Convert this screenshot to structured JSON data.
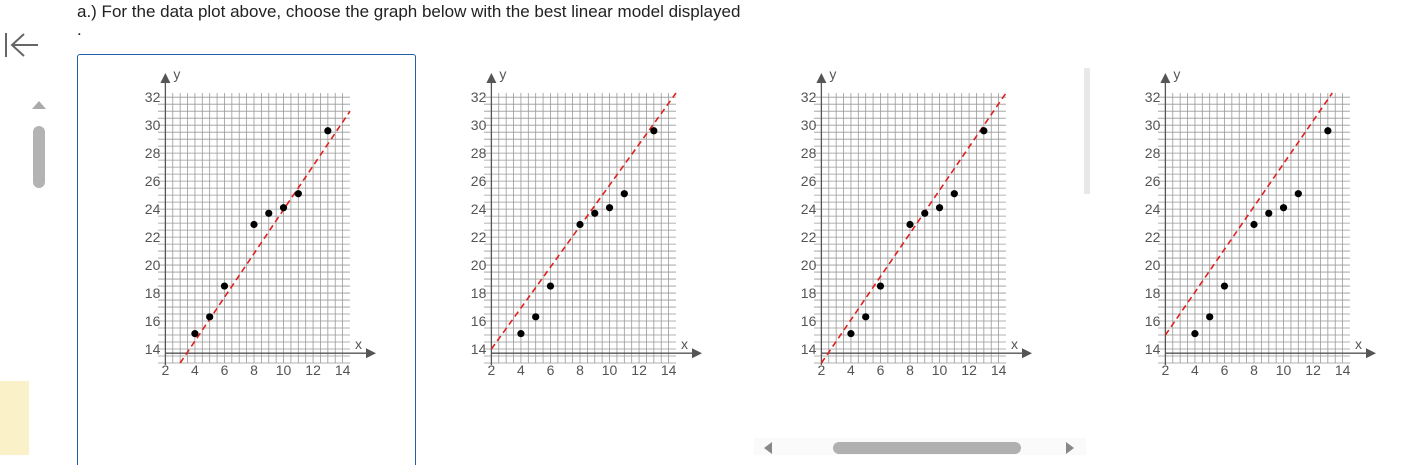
{
  "question": {
    "text": "a.) For the data plot above, choose the graph below with the best linear model displayed",
    "dot": "."
  },
  "graphs": [
    {
      "id": "a",
      "line": {
        "x1": 3,
        "y1": 13,
        "x2": 14.5,
        "y2": 31
      }
    },
    {
      "id": "b",
      "line": {
        "x1": 2,
        "y1": 14,
        "x2": 14.5,
        "y2": 32.3
      }
    },
    {
      "id": "c",
      "line": {
        "x1": 2,
        "y1": 13,
        "x2": 14.5,
        "y2": 32.3
      }
    },
    {
      "id": "d",
      "line": {
        "x1": 2,
        "y1": 15,
        "x2": 13.3,
        "y2": 32.3
      }
    }
  ],
  "points": [
    [
      4,
      15.1
    ],
    [
      5,
      16.3
    ],
    [
      6,
      18.5
    ],
    [
      8,
      22.9
    ],
    [
      9,
      23.7
    ],
    [
      10,
      24.1
    ],
    [
      11,
      25.1
    ],
    [
      13,
      29.6
    ]
  ],
  "axes": {
    "xlabel": "x",
    "ylabel": "y",
    "xticks": [
      "2",
      "4",
      "6",
      "8",
      "10",
      "12",
      "14"
    ],
    "yticks": [
      "14",
      "16",
      "18",
      "20",
      "22",
      "24",
      "26",
      "28",
      "30",
      "32"
    ]
  },
  "colors": {
    "line": "#e02020",
    "grid": "#999999",
    "axis": "#555555",
    "point": "#000000",
    "selected": "#1f5fa8"
  },
  "icons": {
    "back": "collapse-left-icon"
  }
}
